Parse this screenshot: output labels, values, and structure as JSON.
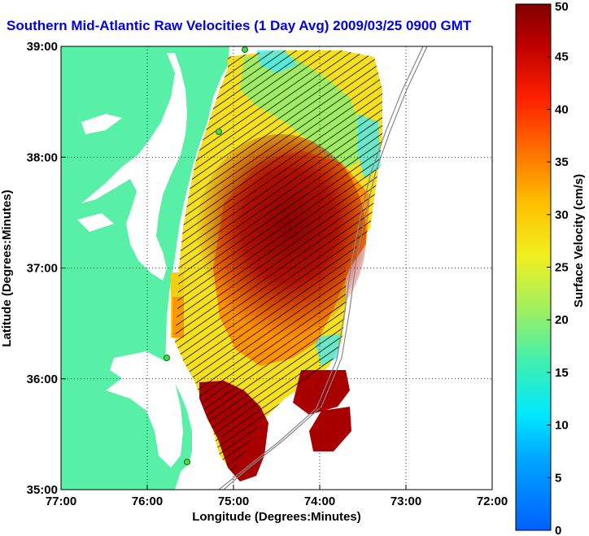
{
  "chart_data": {
    "type": "heatmap",
    "title": "Southern Mid-Atlantic Raw Velocities (1 Day Avg) 2009/03/25 0900 GMT",
    "xlabel": "Longitude (Degrees:Minutes)",
    "ylabel": "Latitude (Degrees:Minutes)",
    "colorbar_label": "Surface Velocity (cm/s)",
    "x_ticks": [
      "77:00",
      "76:00",
      "75:00",
      "74:00",
      "73:00",
      "72:00"
    ],
    "y_ticks": [
      "39:00",
      "38:00",
      "37:00",
      "36:00",
      "35:00"
    ],
    "xlim": [
      -77,
      -72
    ],
    "ylim": [
      35,
      39
    ],
    "colorbar_ticks": [
      "0",
      "5",
      "10",
      "15",
      "20",
      "25",
      "30",
      "35",
      "40",
      "45",
      "50"
    ],
    "colorbar_range": [
      0,
      50
    ],
    "grid": true,
    "colors": {
      "land": "#58f0a6",
      "background": "#ffffff",
      "title": "#0000ee",
      "shelf_line": "#888888"
    }
  }
}
